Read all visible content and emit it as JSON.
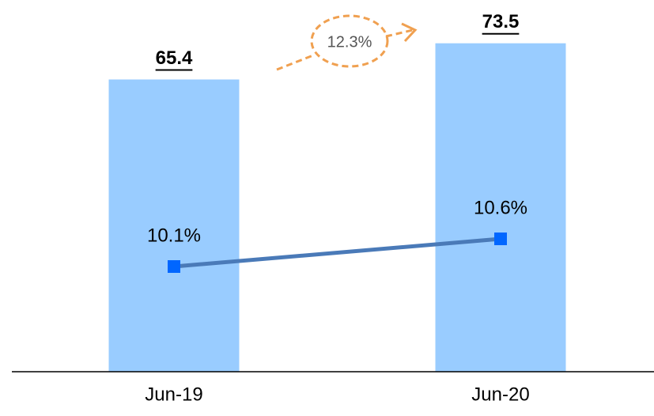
{
  "chart_data": {
    "type": "bar",
    "categories": [
      "Jun-19",
      "Jun-20"
    ],
    "series": [
      {
        "type": "bar",
        "color": "#99ccff",
        "values": [
          65.4,
          73.5
        ]
      },
      {
        "type": "line",
        "axis": "y2",
        "color": "#4a7ab8",
        "marker_color": "#0066ff",
        "values": [
          10.1,
          10.6
        ],
        "value_labels": [
          "10.1%",
          "10.6%"
        ]
      }
    ],
    "annotations": [
      "12.3%"
    ]
  }
}
